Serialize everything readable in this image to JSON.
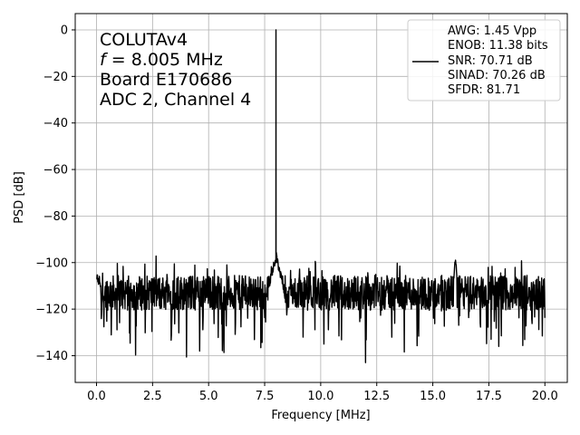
{
  "chart_data": {
    "type": "line",
    "title": "",
    "xlabel": "Frequency [MHz]",
    "ylabel": "PSD [dB]",
    "xlim": [
      -0.95,
      21.0
    ],
    "ylim": [
      -151.5,
      7.0
    ],
    "xticks": [
      0.0,
      2.5,
      5.0,
      7.5,
      10.0,
      12.5,
      15.0,
      17.5,
      20.0
    ],
    "xtick_labels": [
      "0.0",
      "2.5",
      "5.0",
      "7.5",
      "10.0",
      "12.5",
      "15.0",
      "17.5",
      "20.0"
    ],
    "yticks": [
      0,
      -20,
      -40,
      -60,
      -80,
      -100,
      -120,
      -140
    ],
    "ytick_labels": [
      "0",
      "−20",
      "−40",
      "−60",
      "−80",
      "−100",
      "−120",
      "−140"
    ],
    "grid": true,
    "legend_position": "top-right",
    "line_color": "#000000",
    "annotation_lines": [
      "COLUTAv4",
      "f = 8.005 MHz",
      "Board E170686",
      "ADC 2, Channel 4"
    ],
    "annotation_italic_prefix": "f",
    "annotation_freq_rest": " = 8.005 MHz",
    "legend_lines": [
      "AWG: 1.45 Vpp",
      "ENOB: 11.38 bits",
      "SNR: 70.71 dB",
      "SINAD: 70.26 dB",
      "SFDR: 81.71"
    ],
    "series": [
      {
        "name": "",
        "features": {
          "noise_floor_db": -113,
          "signal_frequency_mhz": 8.005,
          "signal_peak_db": 0,
          "dc_spike_db": -97,
          "harmonic_frequency_mhz": 16.01,
          "harmonic_peak_db": -96,
          "min_dip_frequency_mhz": 12.0,
          "min_dip_db": -143
        },
        "x_range": [
          0.0,
          20.0
        ]
      }
    ]
  }
}
